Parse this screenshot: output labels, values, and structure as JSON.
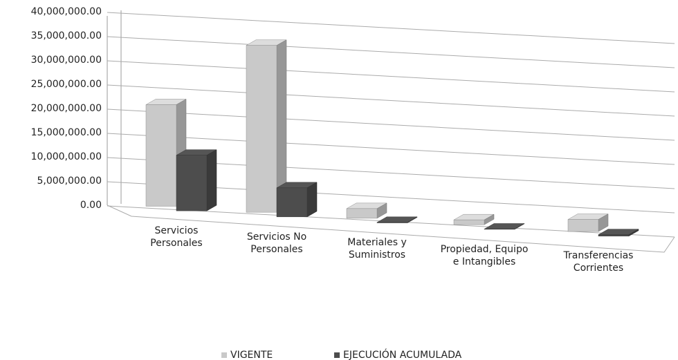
{
  "chart_data": {
    "type": "bar3d",
    "categories": [
      "Servicios Personales",
      "Servicios No Personales",
      "Materiales y Suministros",
      "Propiedad, Equipo e Intangibles",
      "Transferencias Corrientes"
    ],
    "series": [
      {
        "name": "VIGENTE",
        "color": "#c9c9c9",
        "values": [
          21000000,
          34500000,
          2000000,
          1000000,
          2500000
        ]
      },
      {
        "name": "EJECUCIÓN ACUMULADA",
        "color": "#4d4d4d",
        "values": [
          11500000,
          6000000,
          100000,
          50000,
          300000
        ]
      }
    ],
    "ylim": [
      0,
      40000000
    ],
    "yticks": [
      {
        "value": 0,
        "label": "0.00"
      },
      {
        "value": 5000000,
        "label": "5,000,000.00"
      },
      {
        "value": 10000000,
        "label": "10,000,000.00"
      },
      {
        "value": 15000000,
        "label": "15,000,000.00"
      },
      {
        "value": 20000000,
        "label": "20,000,000.00"
      },
      {
        "value": 25000000,
        "label": "25,000,000.00"
      },
      {
        "value": 30000000,
        "label": "30,000,000.00"
      },
      {
        "value": 35000000,
        "label": "35,000,000.00"
      },
      {
        "value": 40000000,
        "label": "40,000,000.00"
      }
    ],
    "grid": true,
    "legend": "bottom"
  }
}
